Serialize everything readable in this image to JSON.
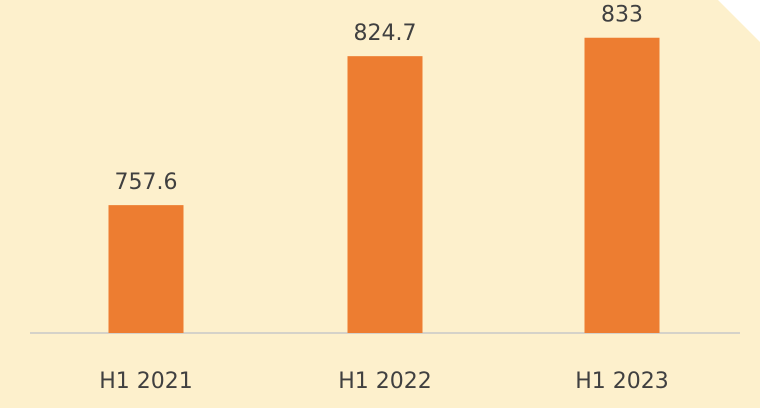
{
  "chart_data": {
    "type": "bar",
    "categories": [
      "H1 2021",
      "H1 2022",
      "H1 2023"
    ],
    "values": [
      757.6,
      824.7,
      833
    ],
    "color": "#ed7d31",
    "ylim": [
      700,
      850
    ]
  }
}
